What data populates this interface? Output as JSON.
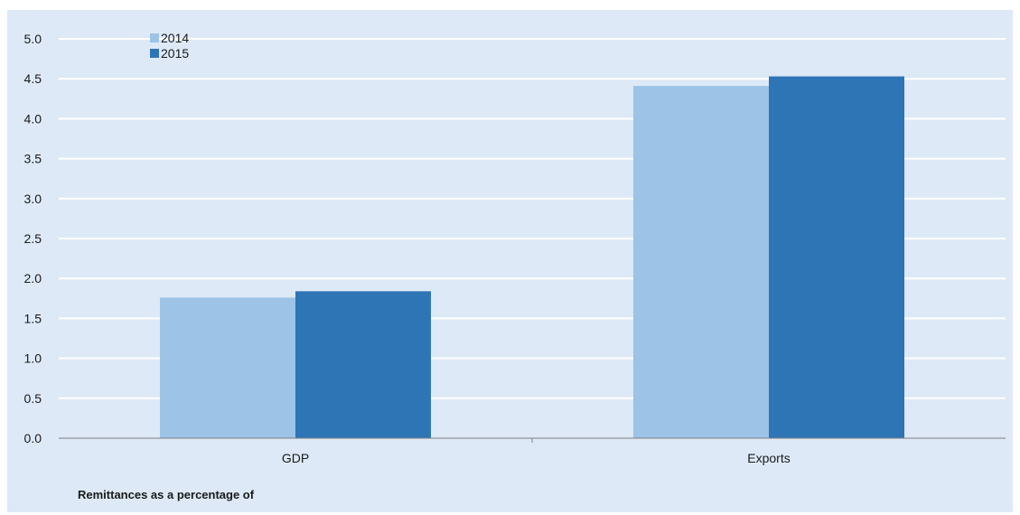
{
  "chart_data": {
    "type": "bar",
    "categories": [
      "GDP",
      "Exports"
    ],
    "series": [
      {
        "name": "2014",
        "values": [
          1.76,
          4.41
        ],
        "color": "#9dc3e6"
      },
      {
        "name": "2015",
        "values": [
          1.84,
          4.53
        ],
        "color": "#2e75b6"
      }
    ],
    "title": "",
    "xlabel": "Remittances  as a percentage of",
    "ylabel": "",
    "ylim": [
      0,
      5
    ],
    "yticks": [
      "0.0",
      "0.5",
      "1.0",
      "1.5",
      "2.0",
      "2.5",
      "3.0",
      "3.5",
      "4.0",
      "4.5",
      "5.0"
    ],
    "grid": true,
    "legend_position": "top-left"
  }
}
